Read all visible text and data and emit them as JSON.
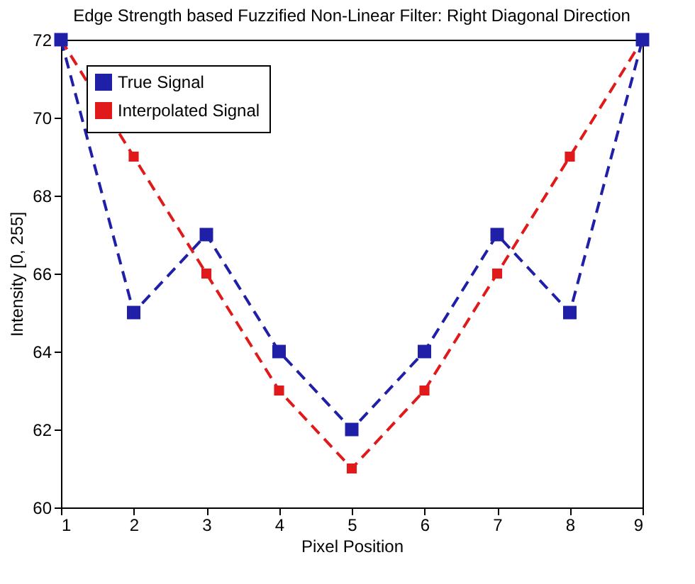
{
  "chart_data": {
    "type": "line",
    "title": "Edge Strength based Fuzzified Non-Linear Filter: Right Diagonal Direction",
    "xlabel": "Pixel Position",
    "ylabel": "Intensity [0, 255]",
    "x": [
      1,
      2,
      3,
      4,
      5,
      6,
      7,
      8,
      9
    ],
    "series": [
      {
        "name": "True Signal",
        "color": "#1f1fa8",
        "values": [
          72,
          65,
          67,
          64,
          62,
          64,
          67,
          65,
          72
        ]
      },
      {
        "name": "Interpolated Signal",
        "color": "#e01a1a",
        "values": [
          72,
          69,
          66,
          63,
          61,
          63,
          66,
          69,
          72
        ]
      }
    ],
    "xlim": [
      1,
      9
    ],
    "xticks": [
      1,
      2,
      3,
      4,
      5,
      6,
      7,
      8,
      9
    ],
    "ylim": [
      60,
      72
    ],
    "yticks": [
      60,
      62,
      64,
      66,
      68,
      70,
      72
    ],
    "grid": false,
    "legend": "top left",
    "marker": "square",
    "line_style": "dashed"
  }
}
